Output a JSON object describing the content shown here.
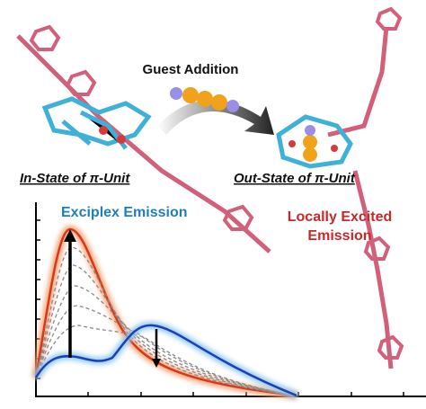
{
  "header": {
    "arrow_label": "Guest Addition"
  },
  "states": {
    "in_state": "In-State of π-Unit",
    "out_state": "Out-State of π-Unit"
  },
  "plot": {
    "exciplex_label": "Exciplex Emission",
    "local_label_line1": "Locally Excited",
    "local_label_line2": "Emission"
  }
}
